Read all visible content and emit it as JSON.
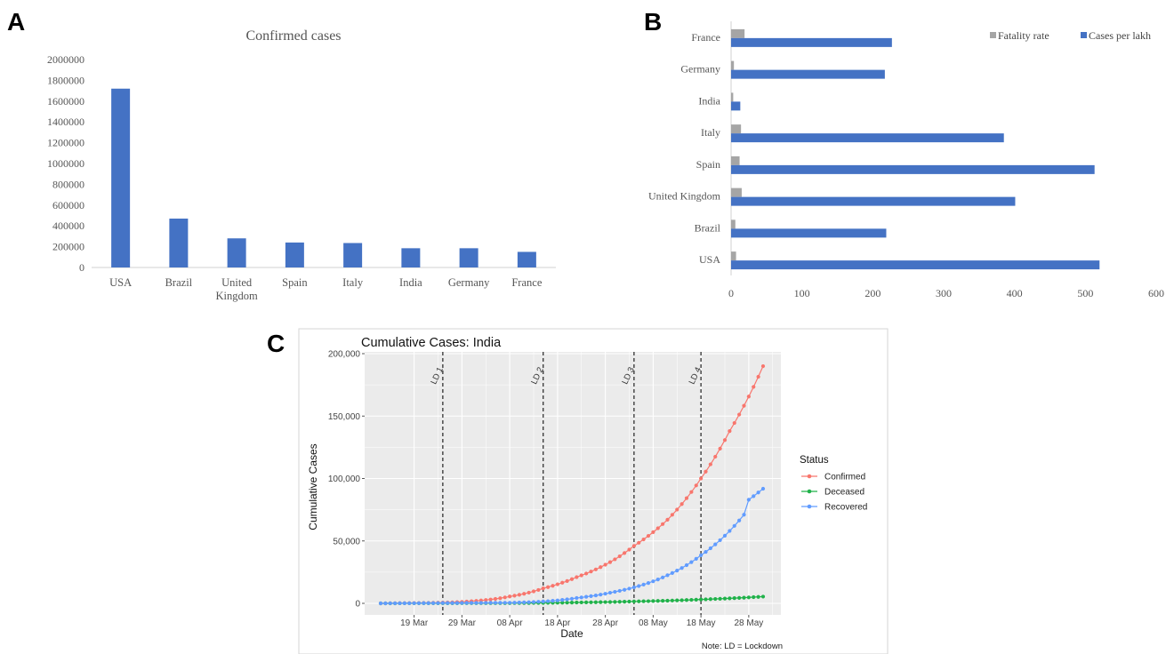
{
  "panels": {
    "a": "A",
    "b": "B",
    "c": "C"
  },
  "colors": {
    "bar_blue": "#4472c4",
    "bar_gray": "#a5a5a5",
    "confirmed": "#f8766d",
    "deceased": "#20b24a",
    "recovered": "#619cff",
    "plot_bg": "#ebebeb"
  },
  "chart_data": [
    {
      "type": "bar",
      "title": "Confirmed cases",
      "categories": [
        "USA",
        "Brazil",
        "United Kingdom",
        "Spain",
        "Italy",
        "India",
        "Germany",
        "France"
      ],
      "category_lines": [
        [
          "USA"
        ],
        [
          "Brazil"
        ],
        [
          "United",
          "Kingdom"
        ],
        [
          "Spain"
        ],
        [
          "Italy"
        ],
        [
          "India"
        ],
        [
          "Germany"
        ],
        [
          "France"
        ]
      ],
      "values": [
        1720000,
        470000,
        280000,
        240000,
        235000,
        185000,
        185000,
        150000
      ],
      "ylim": [
        0,
        2000000
      ],
      "yticks": [
        "0",
        "200000",
        "400000",
        "600000",
        "800000",
        "1000000",
        "1200000",
        "1400000",
        "1600000",
        "1800000",
        "2000000"
      ],
      "grid": false,
      "legend": "none"
    },
    {
      "type": "bar",
      "orientation": "horizontal",
      "categories": [
        "France",
        "Germany",
        "India",
        "Italy",
        "Spain",
        "United Kingdom",
        "Brazil",
        "USA"
      ],
      "series": [
        {
          "name": "Fatality rate",
          "values": [
            19,
            4,
            3,
            14,
            12,
            15,
            6,
            7
          ]
        },
        {
          "name": "Cases per lakh",
          "values": [
            227,
            217,
            13,
            385,
            513,
            401,
            219,
            520
          ]
        }
      ],
      "xlim": [
        0,
        600
      ],
      "xticks": [
        "0",
        "100",
        "200",
        "300",
        "400",
        "500",
        "600"
      ],
      "grid": false,
      "legend": "top-right"
    },
    {
      "type": "line",
      "title": "Cumulative Cases: India",
      "xlabel": "Date",
      "ylabel": "Cumulative Cases",
      "legend_title": "Status",
      "legend": "right",
      "note": "Note: LD = Lockdown",
      "ylim": [
        0,
        200000
      ],
      "yticks": [
        "0",
        "50,000",
        "100,000",
        "150,000",
        "200,000"
      ],
      "xticks": [
        "19 Mar",
        "29 Mar",
        "08 Apr",
        "18 Apr",
        "28 Apr",
        "08 May",
        "18 May",
        "28 May"
      ],
      "x_start": "2020-03-12",
      "x_end": "2020-05-31",
      "lockdowns": [
        {
          "label": "LD 1",
          "date": "2020-03-25"
        },
        {
          "label": "LD 2",
          "date": "2020-04-15"
        },
        {
          "label": "LD 3",
          "date": "2020-05-04"
        },
        {
          "label": "LD 4",
          "date": "2020-05-18"
        }
      ],
      "series": [
        {
          "name": "Confirmed",
          "values": [
            {
              "x": "2020-03-12",
              "y": 0
            },
            {
              "x": "2020-03-22",
              "y": 400
            },
            {
              "x": "2020-03-25",
              "y": 600
            },
            {
              "x": "2020-04-01",
              "y": 2000
            },
            {
              "x": "2020-04-08",
              "y": 5500
            },
            {
              "x": "2020-04-15",
              "y": 12000
            },
            {
              "x": "2020-04-22",
              "y": 21000
            },
            {
              "x": "2020-04-29",
              "y": 33000
            },
            {
              "x": "2020-05-04",
              "y": 46000
            },
            {
              "x": "2020-05-11",
              "y": 67000
            },
            {
              "x": "2020-05-18",
              "y": 100000
            },
            {
              "x": "2020-05-24",
              "y": 138000
            },
            {
              "x": "2020-05-31",
              "y": 190000
            }
          ]
        },
        {
          "name": "Deceased",
          "values": [
            {
              "x": "2020-03-12",
              "y": 0
            },
            {
              "x": "2020-04-08",
              "y": 200
            },
            {
              "x": "2020-04-22",
              "y": 700
            },
            {
              "x": "2020-05-04",
              "y": 1500
            },
            {
              "x": "2020-05-18",
              "y": 3100
            },
            {
              "x": "2020-05-31",
              "y": 5400
            }
          ]
        },
        {
          "name": "Recovered",
          "values": [
            {
              "x": "2020-03-12",
              "y": 0
            },
            {
              "x": "2020-04-08",
              "y": 500
            },
            {
              "x": "2020-04-15",
              "y": 1500
            },
            {
              "x": "2020-04-22",
              "y": 4300
            },
            {
              "x": "2020-04-29",
              "y": 8500
            },
            {
              "x": "2020-05-04",
              "y": 12800
            },
            {
              "x": "2020-05-11",
              "y": 22500
            },
            {
              "x": "2020-05-18",
              "y": 38500
            },
            {
              "x": "2020-05-24",
              "y": 58000
            },
            {
              "x": "2020-05-27",
              "y": 71000
            },
            {
              "x": "2020-05-28",
              "y": 83000
            },
            {
              "x": "2020-05-31",
              "y": 91800
            }
          ]
        }
      ]
    }
  ]
}
